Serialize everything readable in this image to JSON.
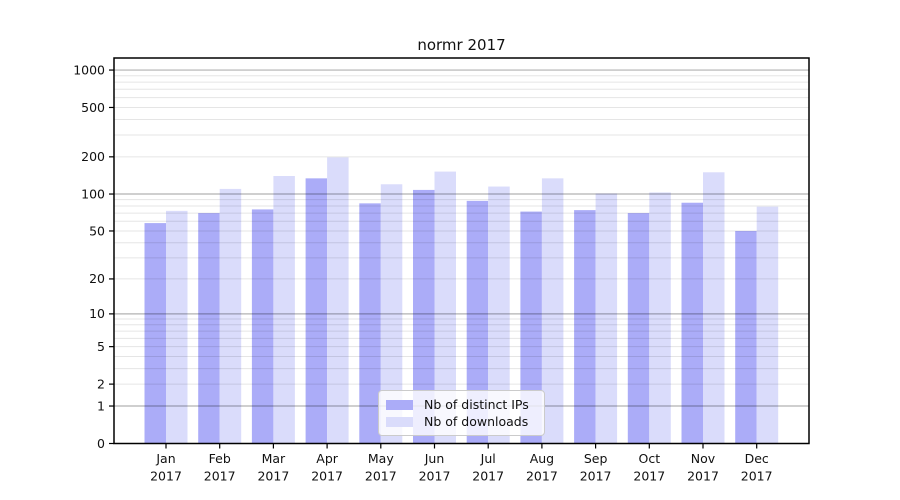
{
  "figure": {
    "background": "#ffffff"
  },
  "chart_data": {
    "type": "bar",
    "title": "normr 2017",
    "categories": [
      "Jan",
      "Feb",
      "Mar",
      "Apr",
      "May",
      "Jun",
      "Jul",
      "Aug",
      "Sep",
      "Oct",
      "Nov",
      "Dec"
    ],
    "x_tick_second_line": "2017",
    "series": [
      {
        "name": "Nb of distinct IPs",
        "color": "#abacf8",
        "values": [
          58,
          70,
          75,
          134,
          84,
          108,
          88,
          72,
          74,
          70,
          85,
          50
        ]
      },
      {
        "name": "Nb of downloads",
        "color": "#dadcfb",
        "values": [
          73,
          110,
          140,
          198,
          120,
          152,
          115,
          134,
          101,
          103,
          150,
          79
        ]
      }
    ],
    "yscale": "log1p",
    "ylim": [
      0,
      1250
    ],
    "y_ticks": [
      {
        "label": "1000",
        "value": 1000
      },
      {
        "label": "500",
        "value": 500
      },
      {
        "label": "200",
        "value": 200
      },
      {
        "label": "100",
        "value": 100
      },
      {
        "label": "50",
        "value": 50
      },
      {
        "label": "20",
        "value": 20
      },
      {
        "label": "10",
        "value": 10
      },
      {
        "label": "5",
        "value": 5
      },
      {
        "label": "2",
        "value": 2
      },
      {
        "label": "1",
        "value": 1
      },
      {
        "label": "0",
        "value": 0
      }
    ],
    "grid": {
      "major_values": [
        1,
        10,
        100,
        1000
      ],
      "minor_values": [
        2,
        3,
        4,
        5,
        6,
        7,
        8,
        9,
        20,
        30,
        40,
        50,
        60,
        70,
        80,
        90,
        200,
        300,
        400,
        500,
        600,
        700,
        800,
        900
      ],
      "major_color": "rgba(0,0,0,0.30)",
      "minor_color": "rgba(0,0,0,0.10)"
    },
    "legend_position": "bottom-center",
    "axis_color": "#000000",
    "text_color": "#111111"
  }
}
